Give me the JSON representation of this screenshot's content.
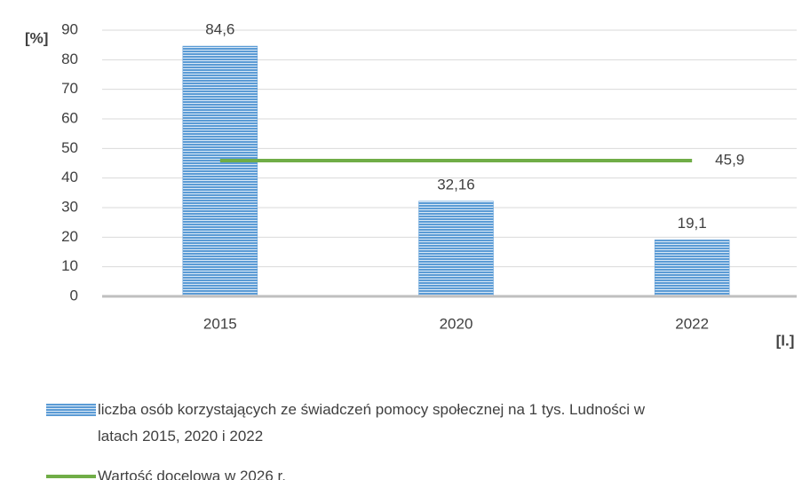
{
  "chart_data": {
    "type": "bar",
    "y_label": "[%]",
    "x_label": "[l.]",
    "categories": [
      "2015",
      "2020",
      "2022"
    ],
    "series": [
      {
        "name": "liczba osób korzystających ze świadczeń pomocy społecznej na 1 tys. Ludności w latach 2015, 2020 i 2022",
        "type": "bar",
        "color": "#5b9bd5",
        "values": [
          84.6,
          32.16,
          19.1
        ],
        "value_labels": [
          "84,6",
          "32,16",
          "19,1"
        ]
      },
      {
        "name": "Wartość docelowa w 2026 r.",
        "type": "line",
        "color": "#70ad47",
        "values": [
          45.9,
          45.9,
          45.9
        ],
        "value_labels": [
          null,
          null,
          "45,9"
        ]
      }
    ],
    "ylim": [
      0,
      90
    ],
    "yticks": [
      0,
      10,
      20,
      30,
      40,
      50,
      60,
      70,
      80,
      90
    ],
    "grid": true
  }
}
